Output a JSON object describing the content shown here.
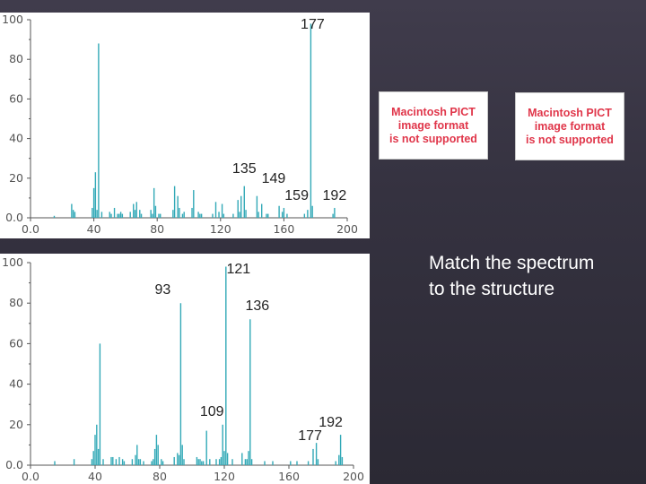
{
  "pict_placeholder_text": "Macintosh PICT\nimage format\nis not supported",
  "prompt_text": "Match the spectrum to the structure",
  "colors": {
    "bar": "#32a9b7",
    "axis": "#555555",
    "background": "#ffffff"
  },
  "chart_data": [
    {
      "type": "bar",
      "title": "",
      "xlabel": "",
      "ylabel": "",
      "xlim": [
        0,
        200
      ],
      "ylim": [
        0,
        100
      ],
      "x_ticks": [
        "0.0",
        "40",
        "80",
        "120",
        "160",
        "200"
      ],
      "x_tick_values": [
        0,
        40,
        80,
        120,
        160,
        200
      ],
      "y_ticks": [
        "0.0",
        "20",
        "40",
        "60",
        "80",
        "100"
      ],
      "y_tick_values": [
        0,
        20,
        40,
        60,
        80,
        100
      ],
      "grid": false,
      "x": [
        15,
        26,
        27,
        28,
        39,
        40,
        41,
        42,
        43,
        45,
        50,
        51,
        53,
        55,
        56,
        57,
        58,
        63,
        65,
        66,
        67,
        69,
        70,
        76,
        77,
        78,
        79,
        81,
        82,
        90,
        91,
        93,
        94,
        96,
        97,
        102,
        103,
        106,
        107,
        108,
        115,
        117,
        119,
        121,
        122,
        128,
        131,
        132,
        133,
        135,
        136,
        143,
        144,
        146,
        149,
        150,
        157,
        159,
        160,
        162,
        173,
        175,
        177,
        178,
        191,
        192
      ],
      "values": [
        1,
        7,
        4,
        3,
        5,
        15,
        23,
        4,
        88,
        3,
        3,
        2,
        5,
        2,
        2,
        3,
        2,
        3,
        7,
        4,
        8,
        4,
        2,
        4,
        2,
        15,
        6,
        2,
        2,
        4,
        16,
        11,
        5,
        2,
        3,
        5,
        14,
        3,
        2,
        2,
        2,
        8,
        3,
        7,
        2,
        2,
        9,
        3,
        11,
        16,
        4,
        11,
        3,
        7,
        2,
        2,
        6,
        3,
        5,
        2,
        2,
        4,
        98,
        6,
        2,
        5
      ],
      "annotations": [
        {
          "text": "177",
          "x": 177,
          "y": 98
        },
        {
          "text": "135",
          "x": 135,
          "y": 23
        },
        {
          "text": "149",
          "x": 149,
          "y": 20
        },
        {
          "text": "159",
          "x": 159,
          "y": 12
        },
        {
          "text": "192",
          "x": 192,
          "y": 12
        }
      ]
    },
    {
      "type": "bar",
      "title": "",
      "xlabel": "",
      "ylabel": "",
      "xlim": [
        0,
        200
      ],
      "ylim": [
        0,
        100
      ],
      "x_ticks": [
        "0.0",
        "40",
        "80",
        "120",
        "160",
        "200"
      ],
      "x_tick_values": [
        0,
        40,
        80,
        120,
        160,
        200
      ],
      "y_ticks": [
        "0.0",
        "20",
        "40",
        "60",
        "80",
        "100"
      ],
      "y_tick_values": [
        0,
        20,
        40,
        60,
        80,
        100
      ],
      "grid": false,
      "x": [
        15,
        27,
        38,
        39,
        40,
        41,
        42,
        43,
        45,
        50,
        51,
        53,
        55,
        57,
        58,
        63,
        65,
        66,
        67,
        68,
        70,
        75,
        76,
        77,
        78,
        79,
        81,
        82,
        89,
        91,
        92,
        93,
        94,
        95,
        103,
        104,
        105,
        106,
        107,
        109,
        111,
        115,
        117,
        118,
        119,
        120,
        121,
        122,
        125,
        131,
        133,
        134,
        135,
        136,
        137,
        145,
        150,
        161,
        165,
        172,
        175,
        177,
        178,
        189,
        191,
        192,
        193
      ],
      "values": [
        2,
        3,
        3,
        7,
        15,
        20,
        8,
        60,
        3,
        4,
        4,
        3,
        4,
        3,
        2,
        3,
        5,
        10,
        3,
        3,
        2,
        2,
        3,
        8,
        15,
        10,
        3,
        2,
        4,
        6,
        5,
        80,
        10,
        3,
        4,
        3,
        3,
        2,
        2,
        17,
        3,
        3,
        3,
        4,
        20,
        7,
        98,
        6,
        3,
        6,
        3,
        3,
        7,
        72,
        3,
        2,
        2,
        2,
        2,
        2,
        8,
        11,
        3,
        2,
        5,
        15,
        4
      ],
      "annotations": [
        {
          "text": "93",
          "x": 93,
          "y": 80
        },
        {
          "text": "121",
          "x": 121,
          "y": 98
        },
        {
          "text": "136",
          "x": 136,
          "y": 72
        },
        {
          "text": "109",
          "x": 109,
          "y": 17
        },
        {
          "text": "177",
          "x": 177,
          "y": 11
        },
        {
          "text": "192",
          "x": 192,
          "y": 15
        }
      ]
    }
  ]
}
